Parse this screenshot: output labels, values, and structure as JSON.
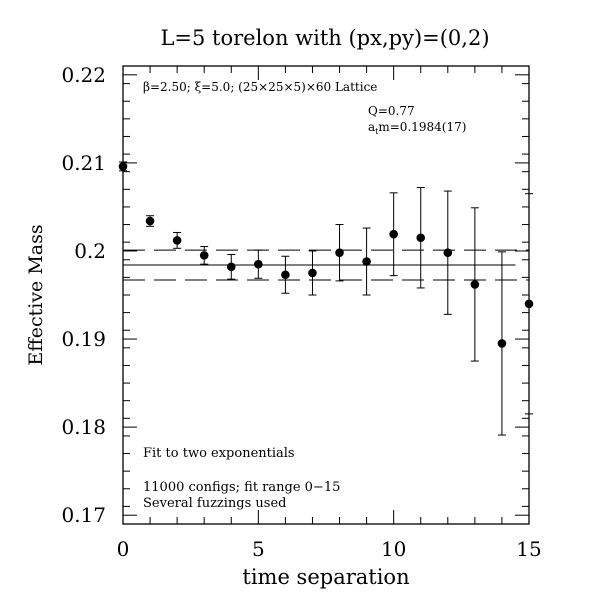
{
  "chart_data": {
    "type": "scatter",
    "title": "L=5 torelon with (px,py)=(0,2)",
    "xlabel": "time separation",
    "ylabel": "Effective Mass",
    "xlim": [
      0,
      15
    ],
    "ylim": [
      0.169,
      0.221
    ],
    "x_ticks": [
      0,
      5,
      10,
      15
    ],
    "x_tick_labels": [
      "0",
      "5",
      "10",
      "15"
    ],
    "y_ticks": [
      0.17,
      0.18,
      0.19,
      0.2,
      0.21,
      0.22
    ],
    "y_tick_labels": [
      "0.17",
      "0.18",
      "0.19",
      "0.2",
      "0.21",
      "0.22"
    ],
    "x_minor_step": 1,
    "y_minor_step": 0.002,
    "grid": false,
    "annotations": {
      "lattice": "β=2.50; ξ=5.0; (25×25×5)×60 Lattice",
      "q": "Q=0.77",
      "mass": "atm=0.1984(17)",
      "fit": "Fit to two exponentials",
      "configs": "11000 configs; fit range 0−15",
      "fuzzing": "Several fuzzings used"
    },
    "fit": {
      "value": 0.1984,
      "error": 0.0017,
      "x_start": 0,
      "x_end": 14.5
    },
    "points": [
      {
        "x": 0,
        "y": 0.2096,
        "err": 0.0005
      },
      {
        "x": 1,
        "y": 0.2034,
        "err": 0.0006
      },
      {
        "x": 2,
        "y": 0.2012,
        "err": 0.0009
      },
      {
        "x": 3,
        "y": 0.1995,
        "err": 0.001
      },
      {
        "x": 4,
        "y": 0.1982,
        "err": 0.0014
      },
      {
        "x": 5,
        "y": 0.1985,
        "err": 0.0016
      },
      {
        "x": 6,
        "y": 0.1973,
        "err": 0.0021
      },
      {
        "x": 7,
        "y": 0.1975,
        "err": 0.0025
      },
      {
        "x": 8,
        "y": 0.1998,
        "err": 0.0032
      },
      {
        "x": 9,
        "y": 0.1988,
        "err": 0.0038
      },
      {
        "x": 10,
        "y": 0.2019,
        "err": 0.0047
      },
      {
        "x": 11,
        "y": 0.2015,
        "err": 0.0057
      },
      {
        "x": 12,
        "y": 0.1998,
        "err": 0.007
      },
      {
        "x": 13,
        "y": 0.1962,
        "err": 0.0087
      },
      {
        "x": 14,
        "y": 0.1895,
        "err": 0.0104
      },
      {
        "x": 15,
        "y": 0.194,
        "err": 0.0125
      }
    ]
  }
}
